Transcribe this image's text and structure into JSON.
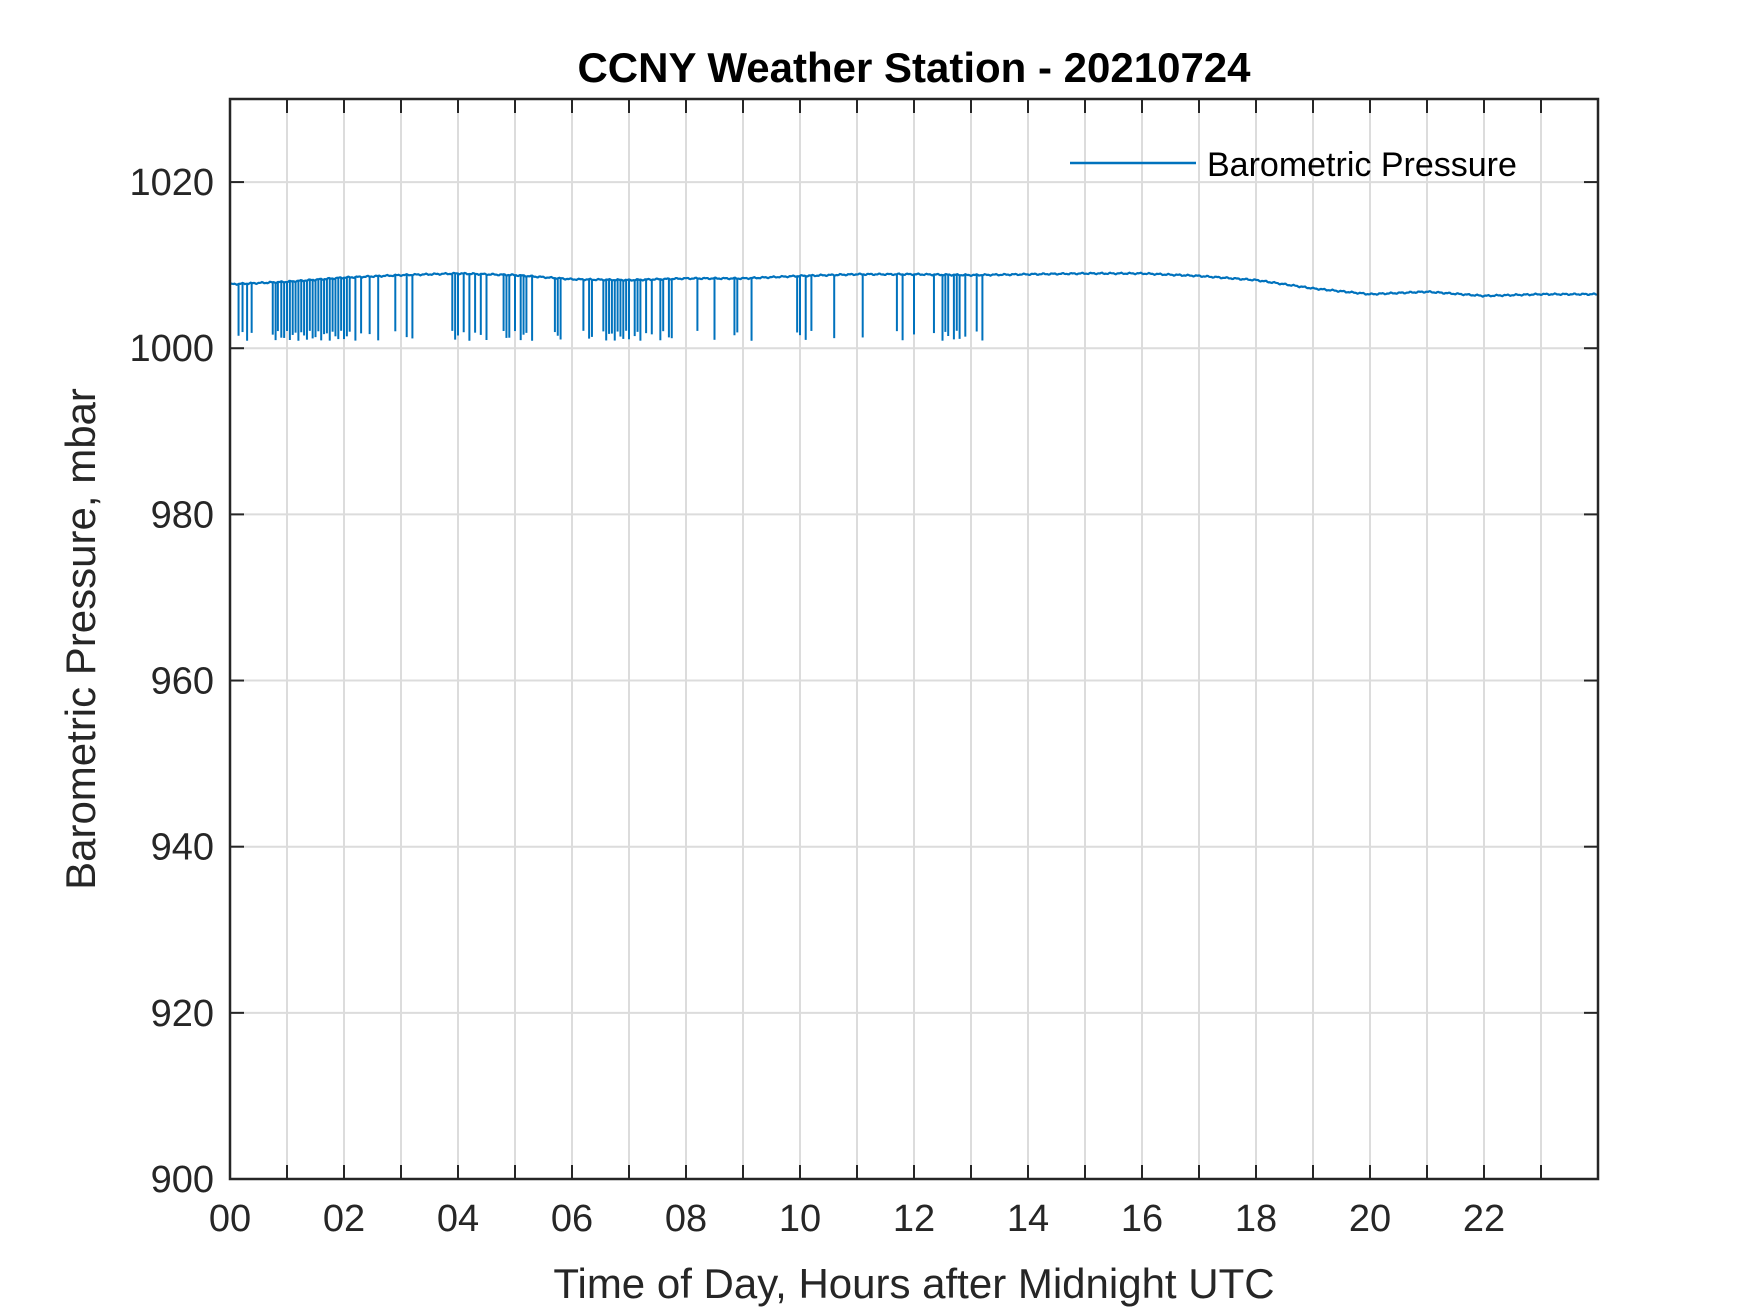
{
  "chart_data": {
    "type": "line",
    "title": "CCNY Weather Station - 20210724",
    "xlabel": "Time of Day, Hours after Midnight UTC",
    "ylabel": "Barometric Pressure, mbar",
    "xlim": [
      0,
      24
    ],
    "ylim": [
      900,
      1030
    ],
    "x_ticks": [
      0,
      2,
      4,
      6,
      8,
      10,
      12,
      14,
      16,
      18,
      20,
      22
    ],
    "x_tick_labels": [
      "00",
      "02",
      "04",
      "06",
      "08",
      "10",
      "12",
      "14",
      "16",
      "18",
      "20",
      "22"
    ],
    "x_minor_ticks": [
      1,
      3,
      5,
      7,
      9,
      11,
      13,
      15,
      17,
      19,
      21,
      23
    ],
    "y_ticks": [
      900,
      920,
      940,
      960,
      980,
      1000,
      1020
    ],
    "y_tick_labels": [
      "900",
      "920",
      "940",
      "960",
      "980",
      "1000",
      "1020"
    ],
    "grid": true,
    "legend_position": "top-right",
    "color": "#0072BD",
    "series": [
      {
        "name": "Barometric Pressure",
        "baseline": {
          "x": [
            0,
            1,
            2,
            3,
            4,
            5,
            6,
            7,
            8,
            9,
            10,
            11,
            12,
            13,
            14,
            15,
            16,
            17,
            18,
            19,
            20,
            21,
            22,
            23,
            24
          ],
          "y": [
            1007.7,
            1008.0,
            1008.5,
            1008.8,
            1009.0,
            1008.8,
            1008.3,
            1008.2,
            1008.4,
            1008.4,
            1008.7,
            1008.9,
            1008.9,
            1008.8,
            1008.9,
            1009.0,
            1009.0,
            1008.7,
            1008.2,
            1007.2,
            1006.5,
            1006.8,
            1006.3,
            1006.5,
            1006.5
          ]
        },
        "dropout_value": 1001.5,
        "dropout_times": [
          0.15,
          0.22,
          0.3,
          0.38,
          0.75,
          0.8,
          0.84,
          0.9,
          0.95,
          1.0,
          1.05,
          1.1,
          1.15,
          1.2,
          1.25,
          1.3,
          1.35,
          1.4,
          1.45,
          1.5,
          1.55,
          1.6,
          1.65,
          1.7,
          1.75,
          1.8,
          1.85,
          1.9,
          1.95,
          2.0,
          2.05,
          2.1,
          2.2,
          2.3,
          2.45,
          2.6,
          2.9,
          3.1,
          3.2,
          3.9,
          3.95,
          4.0,
          4.1,
          4.2,
          4.3,
          4.4,
          4.5,
          4.8,
          4.85,
          4.9,
          5.0,
          5.1,
          5.15,
          5.2,
          5.3,
          5.7,
          5.75,
          5.8,
          6.2,
          6.3,
          6.35,
          6.55,
          6.6,
          6.65,
          6.7,
          6.75,
          6.8,
          6.85,
          6.9,
          6.95,
          7.0,
          7.1,
          7.15,
          7.2,
          7.3,
          7.4,
          7.55,
          7.6,
          7.7,
          7.75,
          8.2,
          8.5,
          8.85,
          8.9,
          9.15,
          9.95,
          10.0,
          10.1,
          10.2,
          10.6,
          11.1,
          11.7,
          11.8,
          12.0,
          12.35,
          12.5,
          12.55,
          12.6,
          12.7,
          12.75,
          12.8,
          12.9,
          13.1,
          13.2
        ]
      }
    ]
  }
}
